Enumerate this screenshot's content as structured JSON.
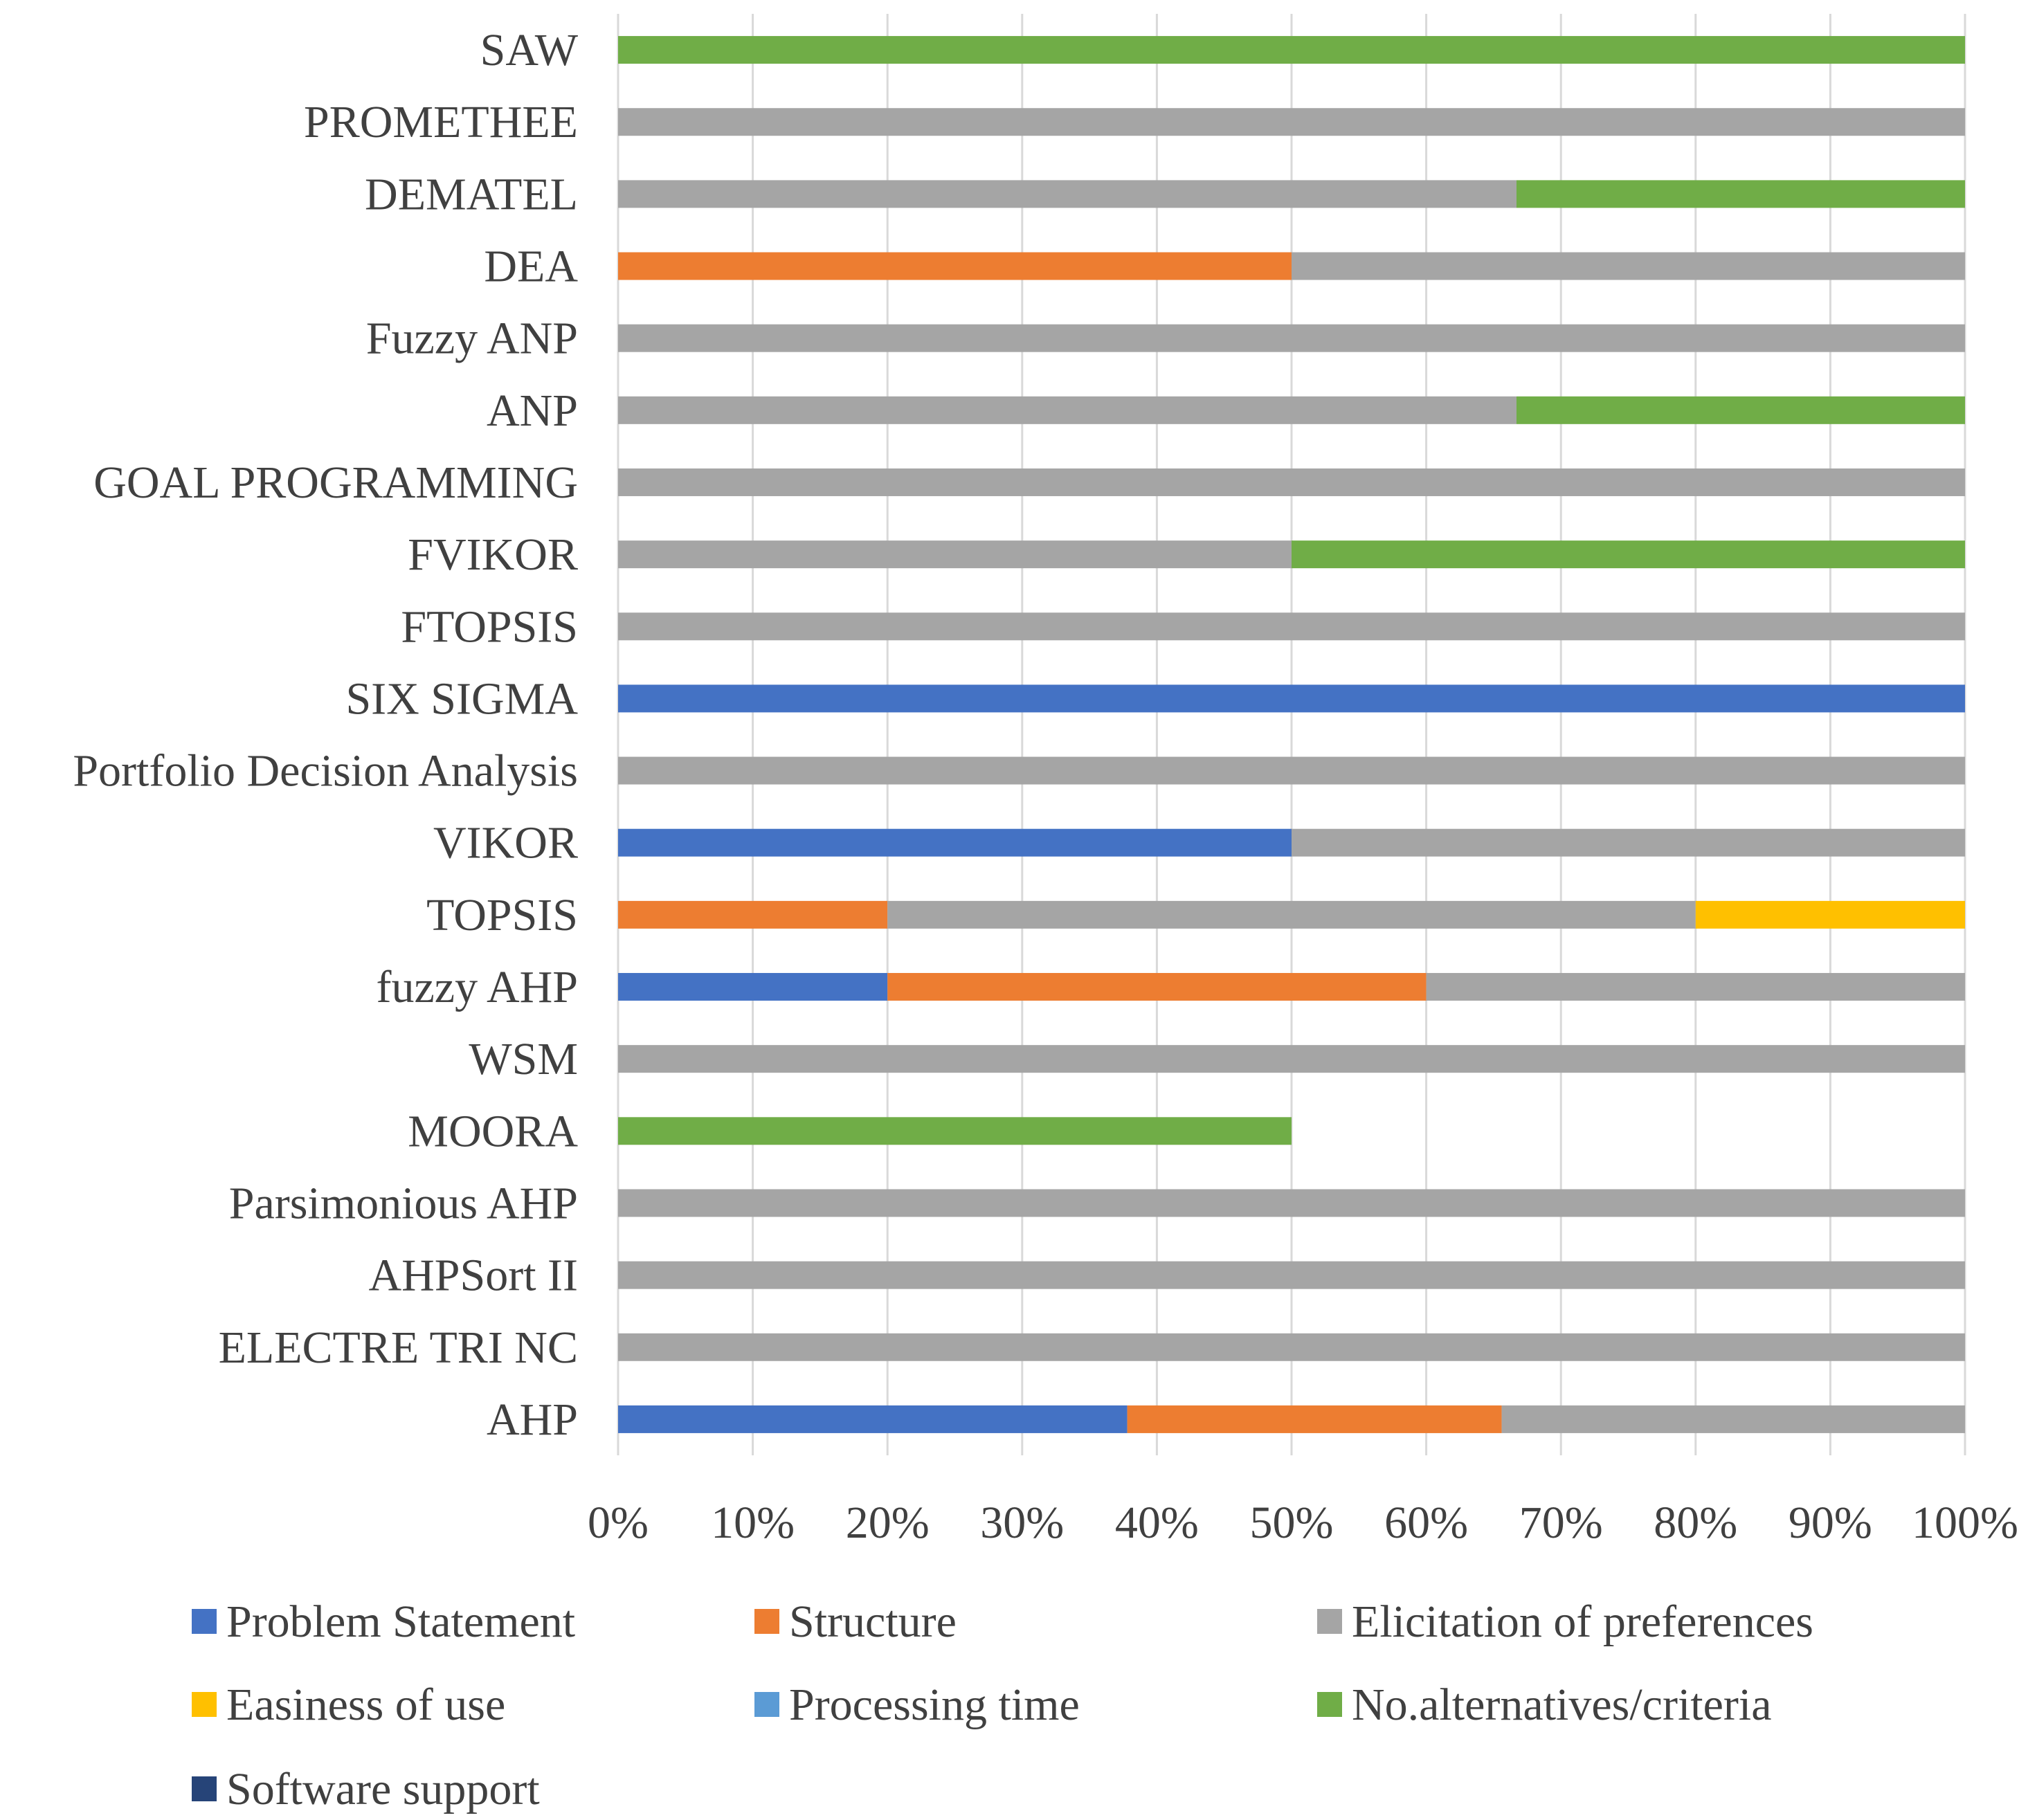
{
  "chart_data": {
    "type": "bar",
    "orientation": "horizontal",
    "stacked": "percent",
    "title": "",
    "xlabel": "",
    "ylabel": "",
    "xlim": [
      0,
      100
    ],
    "x_ticks": [
      "0%",
      "10%",
      "20%",
      "30%",
      "40%",
      "50%",
      "60%",
      "70%",
      "80%",
      "90%",
      "100%"
    ],
    "grid": true,
    "legend_position": "bottom",
    "categories": [
      "SAW",
      "PROMETHEE",
      "DEMATEL",
      "DEA",
      "Fuzzy ANP",
      "ANP",
      "GOAL PROGRAMMING",
      "FVIKOR",
      "FTOPSIS",
      "SIX SIGMA",
      "Portfolio Decision Analysis",
      "VIKOR",
      "TOPSIS",
      "fuzzy AHP",
      "WSM",
      "MOORA",
      "Parsimonious AHP",
      "AHPSort II",
      "ELECTRE TRI NC",
      "AHP"
    ],
    "series": [
      {
        "name": "Problem Statement",
        "color": "#4472C4",
        "values": [
          0,
          0,
          0,
          0,
          0,
          0,
          0,
          0,
          0,
          100,
          0,
          50,
          0,
          20,
          0,
          0,
          0,
          0,
          0,
          37.8
        ]
      },
      {
        "name": "Structure",
        "color": "#ED7D31",
        "values": [
          0,
          0,
          0,
          50,
          0,
          0,
          0,
          0,
          0,
          0,
          0,
          0,
          20,
          40,
          0,
          0,
          0,
          0,
          0,
          27.8
        ]
      },
      {
        "name": "Elicitation of preferences",
        "color": "#A5A5A5",
        "values": [
          0,
          100,
          66.7,
          50,
          100,
          66.7,
          100,
          50,
          100,
          0,
          100,
          50,
          60,
          40,
          100,
          0,
          100,
          100,
          100,
          34.4
        ]
      },
      {
        "name": "Easiness of use",
        "color": "#FFC000",
        "values": [
          0,
          0,
          0,
          0,
          0,
          0,
          0,
          0,
          0,
          0,
          0,
          0,
          20,
          0,
          0,
          0,
          0,
          0,
          0,
          0
        ]
      },
      {
        "name": "Processing time",
        "color": "#5B9BD5",
        "values": [
          0,
          0,
          0,
          0,
          0,
          0,
          0,
          0,
          0,
          0,
          0,
          0,
          0,
          0,
          0,
          0,
          0,
          0,
          0,
          0
        ]
      },
      {
        "name": "No.alternatives/criteria",
        "color": "#70AD47",
        "values": [
          100,
          0,
          33.3,
          0,
          0,
          33.3,
          0,
          50,
          0,
          0,
          0,
          0,
          0,
          0,
          0,
          50,
          0,
          0,
          0,
          0
        ]
      },
      {
        "name": "Software support",
        "color": "#264478",
        "values": [
          0,
          0,
          0,
          0,
          0,
          0,
          0,
          0,
          0,
          0,
          0,
          0,
          0,
          0,
          0,
          0,
          0,
          0,
          0,
          0
        ]
      }
    ]
  }
}
